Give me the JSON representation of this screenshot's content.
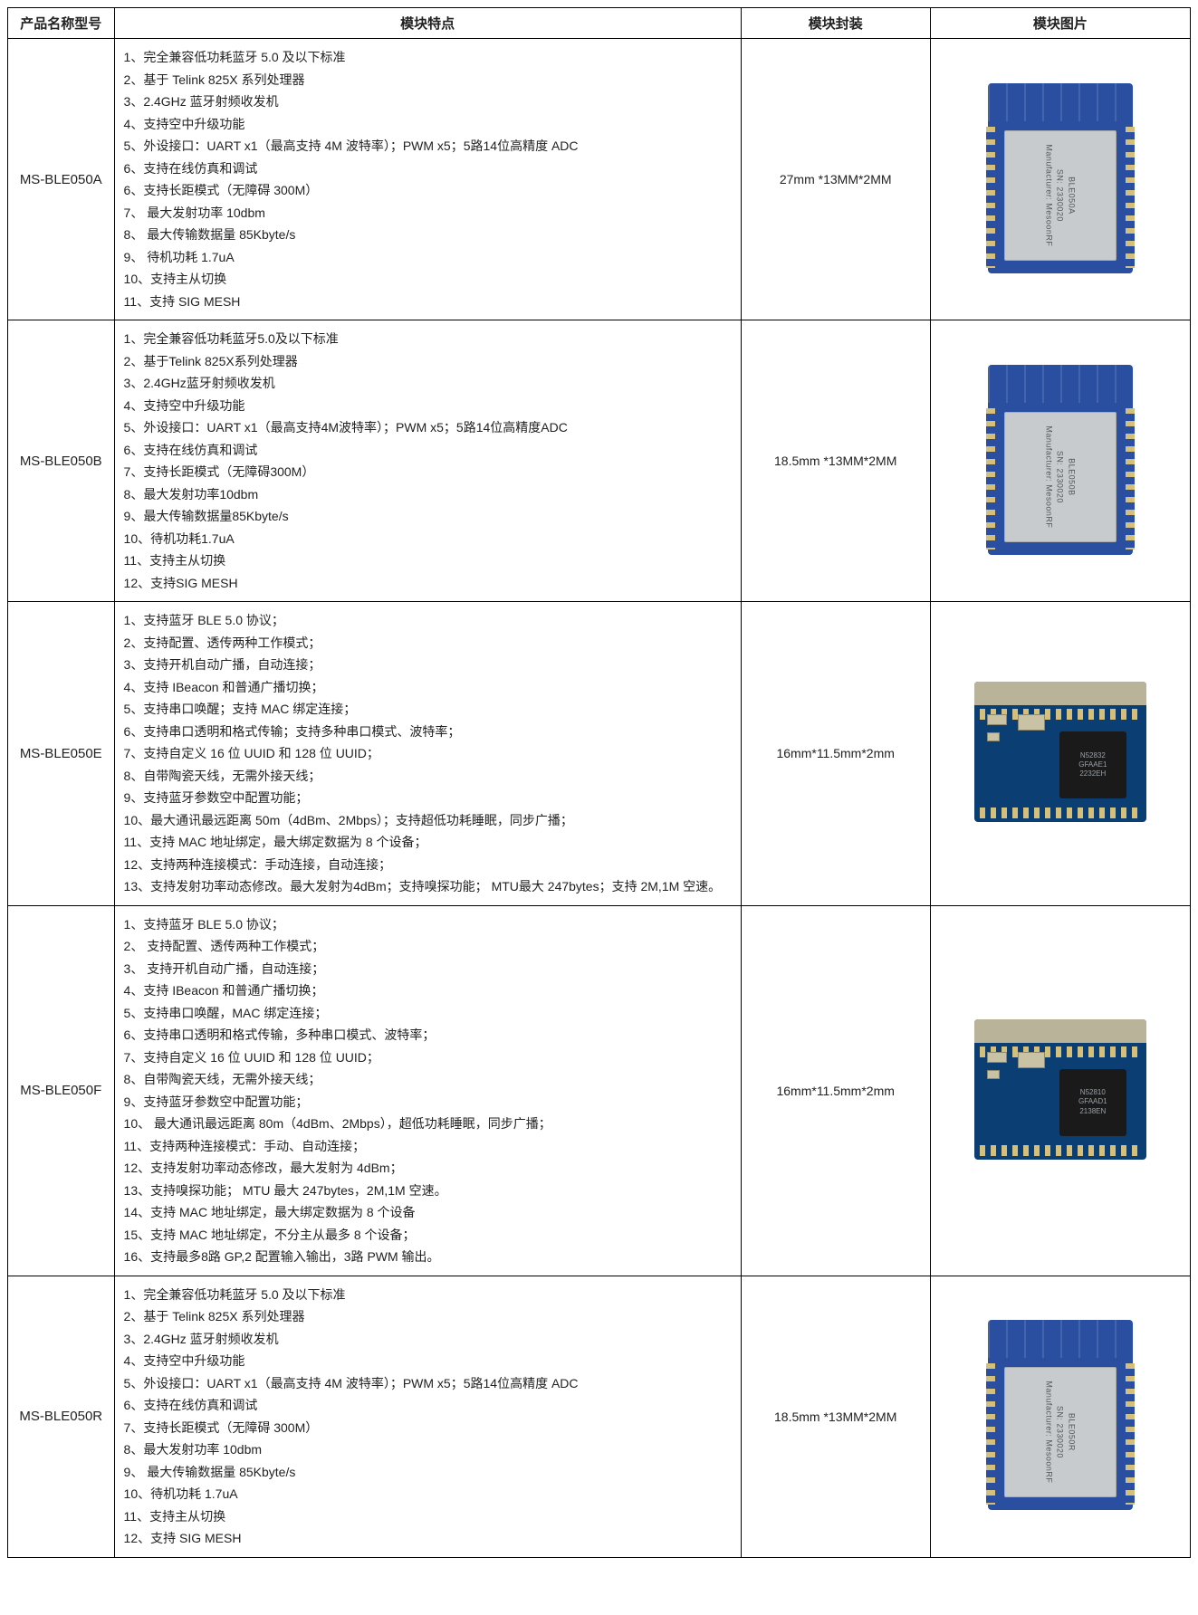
{
  "headers": {
    "model": "产品名称型号",
    "features": "模块特点",
    "package": "模块封装",
    "image": "模块图片"
  },
  "col_widths": {
    "model": "9%",
    "features": "53%",
    "package": "16%",
    "image": "22%"
  },
  "rows": [
    {
      "model": "MS-BLE050A",
      "features": "1、完全兼容低功耗蓝牙 5.0 及以下标准\n2、基于 Telink 825X 系列处理器\n3、2.4GHz 蓝牙射频收发机\n4、支持空中升级功能\n5、外设接口：UART x1（最高支持 4M 波特率）；PWM x5；5路14位高精度 ADC\n6、支持在线仿真和调试\n6、支持长距模式（无障碍 300M）\n7、 最大发射功率 10dbm\n8、 最大传输数据量 85Kbyte/s\n9、 待机功耗 1.7uA\n10、支持主从切换\n11、支持 SIG MESH",
      "package": "27mm *13MM*2MM",
      "img_variant": "shield",
      "img_label": "BLE050A"
    },
    {
      "model": "MS-BLE050B",
      "features": "1、完全兼容低功耗蓝牙5.0及以下标准\n2、基于Telink 825X系列处理器\n3、2.4GHz蓝牙射频收发机\n4、支持空中升级功能\n5、外设接口：UART x1（最高支持4M波特率）；PWM x5；5路14位高精度ADC\n6、支持在线仿真和调试\n7、支持长距模式（无障碍300M）\n8、最大发射功率10dbm\n9、最大传输数据量85Kbyte/s\n10、待机功耗1.7uA\n11、支持主从切换\n12、支持SIG MESH",
      "package": "18.5mm *13MM*2MM",
      "img_variant": "shield",
      "img_label": "BLE050B"
    },
    {
      "model": "MS-BLE050E",
      "features": "1、支持蓝牙 BLE 5.0 协议；\n2、支持配置、透传两种工作模式；\n3、支持开机自动广播，自动连接；\n4、支持 IBeacon 和普通广播切换；\n5、支持串口唤醒；支持 MAC 绑定连接；\n6、支持串口透明和格式传输；支持多种串口模式、波特率；\n7、支持自定义 16 位 UUID 和 128 位 UUID；\n8、自带陶瓷天线，无需外接天线；\n9、支持蓝牙参数空中配置功能；\n10、最大通讯最远距离 50m（4dBm、2Mbps）；支持超低功耗睡眠，同步广播；\n11、支持 MAC 地址绑定，最大绑定数据为 8 个设备；\n12、支持两种连接模式：手动连接，自动连接；\n13、支持发射功率动态修改。最大发射为4dBm；支持嗅探功能； MTU最大 247bytes；支持 2M,1M 空速。",
      "package": "16mm*11.5mm*2mm",
      "img_variant": "chip",
      "img_label": "N52832\nGFAAE1\n2232EH"
    },
    {
      "model": "MS-BLE050F",
      "features": "1、支持蓝牙 BLE 5.0 协议；\n2、 支持配置、透传两种工作模式；\n3、 支持开机自动广播，自动连接；\n4、支持 IBeacon 和普通广播切换；\n5、支持串口唤醒，MAC 绑定连接；\n6、支持串口透明和格式传输，多种串口模式、波特率；\n7、支持自定义 16 位 UUID 和 128 位 UUID；\n8、自带陶瓷天线，无需外接天线；\n9、支持蓝牙参数空中配置功能；\n10、 最大通讯最远距离 80m（4dBm、2Mbps），超低功耗睡眠，同步广播；\n11、支持两种连接模式：手动、自动连接；\n12、支持发射功率动态修改，最大发射为 4dBm；\n13、支持嗅探功能； MTU 最大 247bytes，2M,1M 空速。\n14、支持 MAC 地址绑定，最大绑定数据为 8 个设备\n15、支持 MAC 地址绑定，不分主从最多 8 个设备；\n16、支持最多8路 GP,2 配置输入输出，3路 PWM 输出。",
      "package": "16mm*11.5mm*2mm",
      "img_variant": "chip",
      "img_label": "N52810\nGFAAD1\n2138EN"
    },
    {
      "model": "MS-BLE050R",
      "features": "1、完全兼容低功耗蓝牙 5.0 及以下标准\n2、基于 Telink 825X 系列处理器\n3、2.4GHz 蓝牙射频收发机\n4、支持空中升级功能\n5、外设接口：UART x1（最高支持 4M 波特率）；PWM x5；5路14位高精度 ADC\n6、支持在线仿真和调试\n7、支持长距模式（无障碍 300M）\n8、最大发射功率 10dbm\n9、 最大传输数据量 85Kbyte/s\n10、待机功耗 1.7uA\n11、支持主从切换\n12、支持 SIG MESH",
      "package": "18.5mm *13MM*2MM",
      "img_variant": "shield",
      "img_label": "BLE050R"
    }
  ]
}
